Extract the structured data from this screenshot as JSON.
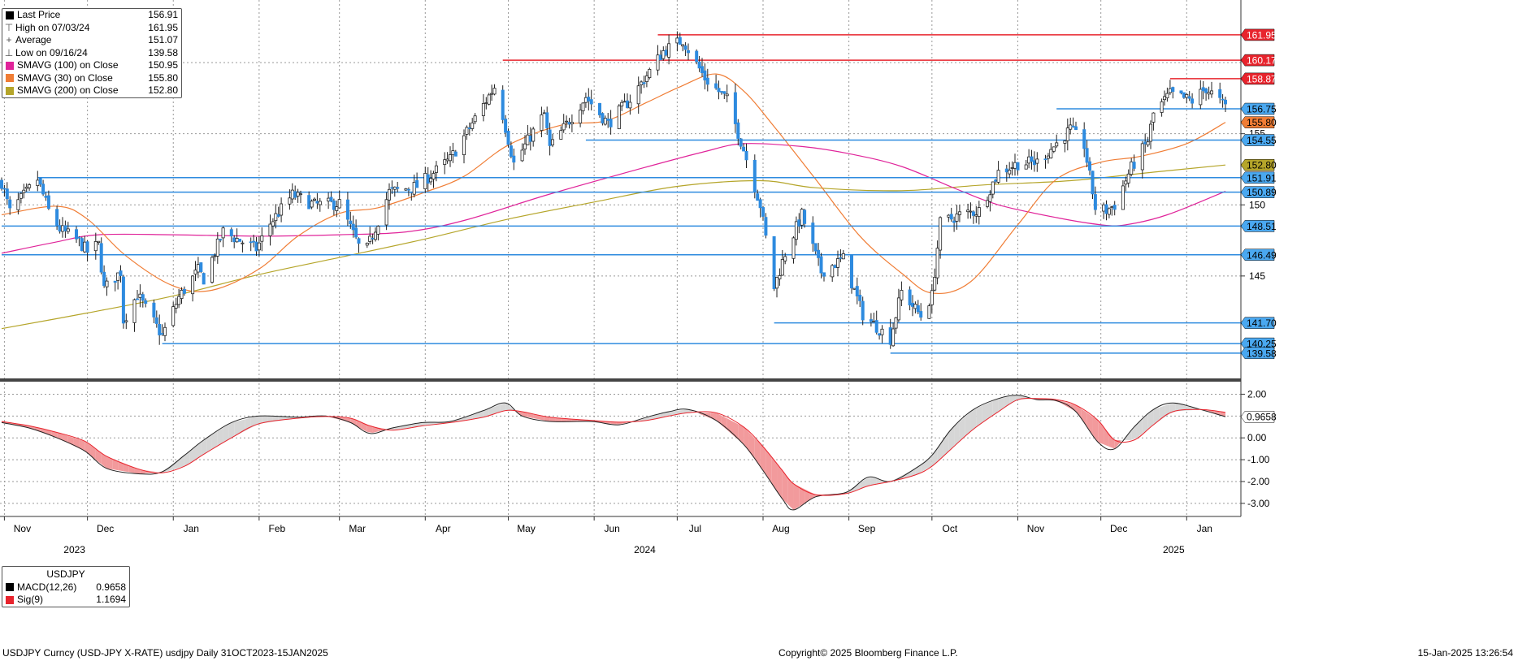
{
  "chart_data": {
    "type": "candlestick",
    "main_legend": [
      {
        "label": "Last Price",
        "value": "156.91",
        "color": "#000000",
        "symbol": "box"
      },
      {
        "label": "High on 07/03/24",
        "value": "161.95",
        "color": "#555555",
        "symbol": "high"
      },
      {
        "label": "Average",
        "value": "151.07",
        "color": "#555555",
        "symbol": "avg"
      },
      {
        "label": "Low on 09/16/24",
        "value": "139.58",
        "color": "#555555",
        "symbol": "low"
      },
      {
        "label": "SMAVG (100)  on Close",
        "value": "150.95",
        "color": "#e0249a",
        "symbol": "box"
      },
      {
        "label": "SMAVG (30)  on Close",
        "value": "155.80",
        "color": "#f07d35",
        "symbol": "box"
      },
      {
        "label": "SMAVG (200)  on Close",
        "value": "152.80",
        "color": "#b5a52a",
        "symbol": "box"
      }
    ],
    "y_axis": {
      "ylim": [
        137.8,
        164.4
      ],
      "ticks": [
        {
          "value": 145,
          "label": "145"
        },
        {
          "value": 150,
          "label": "150"
        },
        {
          "value": 155,
          "label": "155"
        }
      ]
    },
    "hlines": [
      {
        "value": 161.95,
        "label": "161.95",
        "color": "#e8242d",
        "x_start": "2024-06-24"
      },
      {
        "value": 160.17,
        "label": "160.17",
        "color": "#e8242d",
        "x_start": "2024-04-29"
      },
      {
        "value": 158.87,
        "label": "158.87",
        "color": "#e8242d",
        "x_start": "2024-12-26"
      },
      {
        "value": 156.75,
        "label": "156.75",
        "color": "#2e8bdf",
        "x_start": "2024-11-15"
      },
      {
        "value": 154.55,
        "label": "154.55",
        "color": "#2e8bdf",
        "x_start": "2024-05-29"
      },
      {
        "value": 151.91,
        "label": "151.91",
        "color": "#2e8bdf",
        "x_start": "2023-11-13"
      },
      {
        "value": 150.89,
        "label": "150.89",
        "color": "#2e8bdf",
        "x_start": "2023-10-31"
      },
      {
        "value": 148.51,
        "label": "148.51",
        "color": "#2e8bdf",
        "x_start": "2023-10-31"
      },
      {
        "value": 146.49,
        "label": "146.49",
        "color": "#2e8bdf",
        "x_start": "2023-10-31"
      },
      {
        "value": 141.7,
        "label": "141.70",
        "color": "#2e8bdf",
        "x_start": "2024-08-05"
      },
      {
        "value": 140.25,
        "label": "140.25",
        "color": "#2e8bdf",
        "x_start": "2023-12-28"
      },
      {
        "value": 139.58,
        "label": "139.58",
        "color": "#2e8bdf",
        "x_start": "2024-09-16"
      }
    ],
    "price_tags": [
      {
        "value": 155.8,
        "label": "155.80",
        "color": "#f07d35"
      },
      {
        "value": 152.8,
        "label": "152.80",
        "color": "#b5a52a"
      }
    ],
    "months": [
      {
        "date": "2023-11-01",
        "label": "Nov"
      },
      {
        "date": "2023-12-01",
        "label": "Dec"
      },
      {
        "date": "2024-01-01",
        "label": "Jan"
      },
      {
        "date": "2024-02-01",
        "label": "Feb"
      },
      {
        "date": "2024-03-01",
        "label": "Mar"
      },
      {
        "date": "2024-04-01",
        "label": "Apr"
      },
      {
        "date": "2024-05-01",
        "label": "May"
      },
      {
        "date": "2024-06-01",
        "label": "Jun"
      },
      {
        "date": "2024-07-01",
        "label": "Jul"
      },
      {
        "date": "2024-08-01",
        "label": "Aug"
      },
      {
        "date": "2024-09-01",
        "label": "Sep"
      },
      {
        "date": "2024-10-01",
        "label": "Oct"
      },
      {
        "date": "2024-11-01",
        "label": "Nov"
      },
      {
        "date": "2024-12-01",
        "label": "Dec"
      },
      {
        "date": "2025-01-01",
        "label": "Jan"
      }
    ],
    "years": [
      {
        "date": "2023-12-01",
        "label": "2023"
      },
      {
        "date": "2024-06-24",
        "label": "2024"
      },
      {
        "date": "2025-01-01",
        "label": "2025"
      }
    ],
    "x_range": [
      "2023-10-31",
      "2025-01-15"
    ],
    "close_anchors": [
      [
        "2023-10-31",
        151.6
      ],
      [
        "2023-11-03",
        149.5
      ],
      [
        "2023-11-13",
        151.8
      ],
      [
        "2023-11-17",
        149.6
      ],
      [
        "2023-11-21",
        148.3
      ],
      [
        "2023-11-28",
        147.4
      ],
      [
        "2023-12-01",
        146.7
      ],
      [
        "2023-12-05",
        147.2
      ],
      [
        "2023-12-07",
        144.1
      ],
      [
        "2023-12-13",
        145.3
      ],
      [
        "2023-12-14",
        141.9
      ],
      [
        "2023-12-19",
        143.7
      ],
      [
        "2023-12-28",
        140.8
      ],
      [
        "2024-01-03",
        143.5
      ],
      [
        "2024-01-10",
        145.4
      ],
      [
        "2024-01-12",
        144.8
      ],
      [
        "2024-01-19",
        148.1
      ],
      [
        "2024-01-31",
        146.9
      ],
      [
        "2024-02-05",
        148.7
      ],
      [
        "2024-02-13",
        150.7
      ],
      [
        "2024-02-21",
        150.0
      ],
      [
        "2024-03-01",
        150.1
      ],
      [
        "2024-03-08",
        147.1
      ],
      [
        "2024-03-11",
        146.9
      ],
      [
        "2024-03-19",
        150.9
      ],
      [
        "2024-03-29",
        151.3
      ],
      [
        "2024-04-10",
        153.2
      ],
      [
        "2024-04-26",
        158.3
      ],
      [
        "2024-04-29",
        156.3
      ],
      [
        "2024-05-03",
        152.9
      ],
      [
        "2024-05-14",
        156.4
      ],
      [
        "2024-05-16",
        154.0
      ],
      [
        "2024-05-29",
        157.6
      ],
      [
        "2024-06-06",
        155.7
      ],
      [
        "2024-06-14",
        157.4
      ],
      [
        "2024-06-26",
        160.8
      ],
      [
        "2024-07-03",
        161.6
      ],
      [
        "2024-07-11",
        158.9
      ],
      [
        "2024-07-19",
        157.4
      ],
      [
        "2024-07-25",
        153.9
      ],
      [
        "2024-07-31",
        150.0
      ],
      [
        "2024-08-05",
        144.2
      ],
      [
        "2024-08-09",
        146.6
      ],
      [
        "2024-08-15",
        149.3
      ],
      [
        "2024-08-22",
        145.3
      ],
      [
        "2024-08-30",
        146.2
      ],
      [
        "2024-09-06",
        142.3
      ],
      [
        "2024-09-16",
        140.6
      ],
      [
        "2024-09-20",
        143.9
      ],
      [
        "2024-09-27",
        142.2
      ],
      [
        "2024-10-01",
        143.6
      ],
      [
        "2024-10-04",
        148.7
      ],
      [
        "2024-10-11",
        149.3
      ],
      [
        "2024-10-18",
        149.6
      ],
      [
        "2024-10-25",
        152.3
      ],
      [
        "2024-11-01",
        152.9
      ],
      [
        "2024-11-08",
        153.0
      ],
      [
        "2024-11-15",
        154.3
      ],
      [
        "2024-11-20",
        155.3
      ],
      [
        "2024-11-25",
        154.2
      ],
      [
        "2024-11-29",
        149.8
      ],
      [
        "2024-12-03",
        149.6
      ],
      [
        "2024-12-06",
        150.0
      ],
      [
        "2024-12-12",
        152.6
      ],
      [
        "2024-12-18",
        154.5
      ],
      [
        "2024-12-20",
        156.4
      ],
      [
        "2024-12-26",
        157.8
      ],
      [
        "2025-01-03",
        157.3
      ],
      [
        "2025-01-08",
        158.2
      ],
      [
        "2025-01-15",
        156.9
      ]
    ],
    "sma30": [
      [
        "2023-10-31",
        149.3
      ],
      [
        "2023-11-20",
        149.9
      ],
      [
        "2023-12-01",
        149.0
      ],
      [
        "2023-12-15",
        146.4
      ],
      [
        "2024-01-01",
        144.3
      ],
      [
        "2024-01-15",
        144.0
      ],
      [
        "2024-02-01",
        145.5
      ],
      [
        "2024-02-15",
        147.8
      ],
      [
        "2024-03-01",
        149.4
      ],
      [
        "2024-03-15",
        149.8
      ],
      [
        "2024-04-01",
        150.9
      ],
      [
        "2024-04-15",
        152.0
      ],
      [
        "2024-05-01",
        154.2
      ],
      [
        "2024-05-20",
        155.6
      ],
      [
        "2024-06-05",
        155.9
      ],
      [
        "2024-06-20",
        157.2
      ],
      [
        "2024-07-02",
        158.3
      ],
      [
        "2024-07-15",
        159.2
      ],
      [
        "2024-07-25",
        158.0
      ],
      [
        "2024-08-05",
        155.5
      ],
      [
        "2024-08-20",
        151.8
      ],
      [
        "2024-09-05",
        147.8
      ],
      [
        "2024-09-20",
        145.2
      ],
      [
        "2024-10-01",
        143.8
      ],
      [
        "2024-10-15",
        144.6
      ],
      [
        "2024-11-01",
        148.6
      ],
      [
        "2024-11-15",
        151.8
      ],
      [
        "2024-12-01",
        153.0
      ],
      [
        "2024-12-15",
        153.4
      ],
      [
        "2025-01-01",
        154.3
      ],
      [
        "2025-01-15",
        155.8
      ]
    ],
    "sma100": [
      [
        "2023-10-31",
        146.6
      ],
      [
        "2023-11-20",
        147.4
      ],
      [
        "2023-12-05",
        147.9
      ],
      [
        "2024-01-01",
        147.9
      ],
      [
        "2024-02-01",
        147.8
      ],
      [
        "2024-03-01",
        147.9
      ],
      [
        "2024-03-25",
        148.1
      ],
      [
        "2024-04-15",
        148.9
      ],
      [
        "2024-05-15",
        150.7
      ],
      [
        "2024-06-15",
        152.4
      ],
      [
        "2024-07-10",
        153.7
      ],
      [
        "2024-07-25",
        154.3
      ],
      [
        "2024-08-15",
        154.1
      ],
      [
        "2024-09-01",
        153.6
      ],
      [
        "2024-09-20",
        152.7
      ],
      [
        "2024-10-10",
        151.1
      ],
      [
        "2024-10-25",
        150.0
      ],
      [
        "2024-11-15",
        149.1
      ],
      [
        "2024-12-01",
        148.6
      ],
      [
        "2024-12-10",
        148.6
      ],
      [
        "2024-12-25",
        149.3
      ],
      [
        "2025-01-15",
        150.95
      ]
    ],
    "sma200": [
      [
        "2023-10-31",
        141.3
      ],
      [
        "2023-12-01",
        142.4
      ],
      [
        "2024-01-01",
        143.6
      ],
      [
        "2024-02-01",
        145.1
      ],
      [
        "2024-03-01",
        146.3
      ],
      [
        "2024-04-01",
        147.6
      ],
      [
        "2024-05-01",
        149.0
      ],
      [
        "2024-06-01",
        150.2
      ],
      [
        "2024-07-01",
        151.3
      ],
      [
        "2024-07-31",
        151.7
      ],
      [
        "2024-08-20",
        151.2
      ],
      [
        "2024-09-20",
        151.0
      ],
      [
        "2024-10-20",
        151.4
      ],
      [
        "2024-11-20",
        151.7
      ],
      [
        "2024-12-20",
        152.3
      ],
      [
        "2025-01-15",
        152.8
      ]
    ],
    "macd_panel": {
      "title": "USDJPY",
      "legend": [
        {
          "label": "MACD(12,26)",
          "value": "0.9658",
          "color": "#000000"
        },
        {
          "label": "Sig(9)",
          "value": "1.1694",
          "color": "#e8242d"
        }
      ],
      "ylim": [
        -3.6,
        2.5
      ],
      "ticks": [
        {
          "value": 2,
          "label": "2.00"
        },
        {
          "value": 1,
          "label": "1.00"
        },
        {
          "value": 0,
          "label": "0.00"
        },
        {
          "value": -1,
          "label": "-1.00"
        },
        {
          "value": -2,
          "label": "-2.00"
        },
        {
          "value": -3,
          "label": "-3.00"
        }
      ],
      "last_tag": {
        "value": 0.9658,
        "label": "0.9658"
      },
      "macd": [
        [
          "2023-10-31",
          0.7
        ],
        [
          "2023-11-10",
          0.45
        ],
        [
          "2023-11-20",
          0.0
        ],
        [
          "2023-11-30",
          -0.6
        ],
        [
          "2023-12-08",
          -1.4
        ],
        [
          "2023-12-20",
          -1.65
        ],
        [
          "2023-12-28",
          -1.55
        ],
        [
          "2024-01-05",
          -0.8
        ],
        [
          "2024-01-12",
          -0.1
        ],
        [
          "2024-01-22",
          0.7
        ],
        [
          "2024-02-01",
          1.0
        ],
        [
          "2024-02-15",
          0.95
        ],
        [
          "2024-02-25",
          1.0
        ],
        [
          "2024-03-05",
          0.7
        ],
        [
          "2024-03-12",
          0.2
        ],
        [
          "2024-03-20",
          0.45
        ],
        [
          "2024-03-31",
          0.7
        ],
        [
          "2024-04-10",
          0.75
        ],
        [
          "2024-04-22",
          1.25
        ],
        [
          "2024-04-30",
          1.6
        ],
        [
          "2024-05-06",
          1.0
        ],
        [
          "2024-05-16",
          0.75
        ],
        [
          "2024-05-31",
          0.75
        ],
        [
          "2024-06-10",
          0.6
        ],
        [
          "2024-06-20",
          0.95
        ],
        [
          "2024-06-28",
          1.2
        ],
        [
          "2024-07-05",
          1.3
        ],
        [
          "2024-07-15",
          0.8
        ],
        [
          "2024-07-25",
          -0.3
        ],
        [
          "2024-08-01",
          -1.5
        ],
        [
          "2024-08-08",
          -2.8
        ],
        [
          "2024-08-12",
          -3.3
        ],
        [
          "2024-08-20",
          -2.7
        ],
        [
          "2024-08-31",
          -2.5
        ],
        [
          "2024-09-08",
          -1.8
        ],
        [
          "2024-09-16",
          -2.0
        ],
        [
          "2024-09-25",
          -1.4
        ],
        [
          "2024-10-01",
          -0.8
        ],
        [
          "2024-10-08",
          0.4
        ],
        [
          "2024-10-16",
          1.3
        ],
        [
          "2024-10-25",
          1.8
        ],
        [
          "2024-11-01",
          1.95
        ],
        [
          "2024-11-08",
          1.75
        ],
        [
          "2024-11-15",
          1.7
        ],
        [
          "2024-11-22",
          1.2
        ],
        [
          "2024-11-30",
          -0.2
        ],
        [
          "2024-12-06",
          -0.5
        ],
        [
          "2024-12-13",
          0.5
        ],
        [
          "2024-12-20",
          1.3
        ],
        [
          "2024-12-27",
          1.6
        ],
        [
          "2025-01-06",
          1.3
        ],
        [
          "2025-01-15",
          0.97
        ]
      ],
      "signal": [
        [
          "2023-10-31",
          0.75
        ],
        [
          "2023-11-10",
          0.55
        ],
        [
          "2023-11-20",
          0.25
        ],
        [
          "2023-11-30",
          -0.15
        ],
        [
          "2023-12-08",
          -0.85
        ],
        [
          "2023-12-20",
          -1.45
        ],
        [
          "2023-12-28",
          -1.6
        ],
        [
          "2024-01-05",
          -1.3
        ],
        [
          "2024-01-12",
          -0.75
        ],
        [
          "2024-01-22",
          0.0
        ],
        [
          "2024-02-01",
          0.65
        ],
        [
          "2024-02-15",
          0.9
        ],
        [
          "2024-02-25",
          0.98
        ],
        [
          "2024-03-05",
          0.9
        ],
        [
          "2024-03-12",
          0.55
        ],
        [
          "2024-03-20",
          0.35
        ],
        [
          "2024-03-31",
          0.55
        ],
        [
          "2024-04-10",
          0.7
        ],
        [
          "2024-04-22",
          0.95
        ],
        [
          "2024-04-30",
          1.25
        ],
        [
          "2024-05-06",
          1.2
        ],
        [
          "2024-05-16",
          0.95
        ],
        [
          "2024-05-31",
          0.8
        ],
        [
          "2024-06-10",
          0.72
        ],
        [
          "2024-06-20",
          0.8
        ],
        [
          "2024-06-28",
          1.0
        ],
        [
          "2024-07-05",
          1.15
        ],
        [
          "2024-07-15",
          1.15
        ],
        [
          "2024-07-25",
          0.5
        ],
        [
          "2024-08-01",
          -0.4
        ],
        [
          "2024-08-08",
          -1.5
        ],
        [
          "2024-08-12",
          -2.1
        ],
        [
          "2024-08-20",
          -2.6
        ],
        [
          "2024-08-31",
          -2.55
        ],
        [
          "2024-09-08",
          -2.2
        ],
        [
          "2024-09-16",
          -2.0
        ],
        [
          "2024-09-25",
          -1.7
        ],
        [
          "2024-10-01",
          -1.3
        ],
        [
          "2024-10-08",
          -0.5
        ],
        [
          "2024-10-16",
          0.4
        ],
        [
          "2024-10-25",
          1.2
        ],
        [
          "2024-11-01",
          1.75
        ],
        [
          "2024-11-08",
          1.8
        ],
        [
          "2024-11-15",
          1.75
        ],
        [
          "2024-11-22",
          1.5
        ],
        [
          "2024-11-30",
          0.8
        ],
        [
          "2024-12-06",
          -0.1
        ],
        [
          "2024-12-13",
          -0.1
        ],
        [
          "2024-12-20",
          0.6
        ],
        [
          "2024-12-27",
          1.2
        ],
        [
          "2025-01-06",
          1.3
        ],
        [
          "2025-01-15",
          1.17
        ]
      ]
    }
  },
  "footer": {
    "left": "USDJPY Curncy (USD-JPY X-RATE) usdjpy  Daily 31OCT2023-15JAN2025",
    "center": "Copyright© 2025 Bloomberg Finance L.P.",
    "right": "15-Jan-2025 13:26:54"
  }
}
